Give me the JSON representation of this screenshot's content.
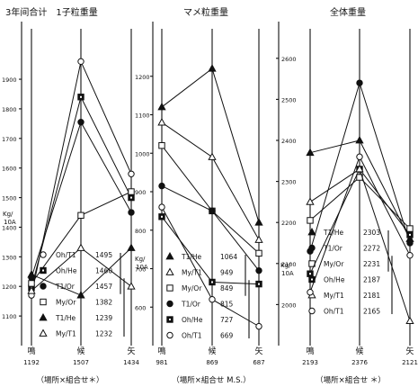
{
  "chart_data": [
    {
      "type": "line",
      "title": "3年间合计　1子粒重量",
      "yunit": "Kg/10A",
      "ylim": [
        1000,
        2040
      ],
      "yticks": [
        1100,
        1200,
        1300,
        1400,
        1500,
        1600,
        1700,
        1800,
        1900
      ],
      "x": [
        "鳴\n1192",
        "候\n1507",
        "矢\n1434"
      ],
      "xnote": "（場所×組合せ＊）",
      "series": [
        {
          "name": "Oh/T1",
          "marker": "circle-open",
          "values": [
            1170,
            1960,
            1580
          ],
          "legend_value": "1495"
        },
        {
          "name": "Oh/He",
          "marker": "square-dot",
          "values": [
            1195,
            1840,
            1500
          ],
          "legend_value": "1460"
        },
        {
          "name": "T1/Or",
          "marker": "circle-filled",
          "values": [
            1230,
            1755,
            1450
          ],
          "legend_value": "1457"
        },
        {
          "name": "My/Or",
          "marker": "square-open",
          "values": [
            1210,
            1440,
            1520
          ],
          "legend_value": "1382"
        },
        {
          "name": "T1/He",
          "marker": "triangle-filled",
          "values": [
            1240,
            1170,
            1330
          ],
          "legend_value": "1239"
        },
        {
          "name": "My/T1",
          "marker": "triangle-open",
          "values": [
            1185,
            1330,
            1200
          ],
          "legend_value": "1232"
        }
      ]
    },
    {
      "type": "line",
      "title": "マメ粒重量",
      "yunit": "Kg/10A",
      "ylim": [
        500,
        1300
      ],
      "yticks": [
        600,
        700,
        800,
        900,
        1000,
        1100,
        1200
      ],
      "x": [
        "鳴\n981",
        "候\n869",
        "矢\n687"
      ],
      "xnote": "（場所×組合せ M.S.）",
      "series": [
        {
          "name": "T1/He",
          "marker": "triangle-filled",
          "values": [
            1120,
            1220,
            820
          ],
          "legend_value": "1064"
        },
        {
          "name": "My/T1",
          "marker": "triangle-open",
          "values": [
            1080,
            990,
            775
          ],
          "legend_value": "949"
        },
        {
          "name": "My/Or",
          "marker": "square-open",
          "values": [
            1020,
            850,
            740
          ],
          "legend_value": "849"
        },
        {
          "name": "T1/Or",
          "marker": "circle-filled",
          "values": [
            915,
            850,
            695
          ],
          "legend_value": "815"
        },
        {
          "name": "Oh/He",
          "marker": "square-dot",
          "values": [
            835,
            665,
            660
          ],
          "legend_value": "727"
        },
        {
          "name": "Oh/T1",
          "marker": "circle-open",
          "values": [
            860,
            620,
            550
          ],
          "legend_value": "669"
        }
      ]
    },
    {
      "type": "line",
      "title": "全体重量",
      "yunit": "Kg/10A",
      "ylim": [
        1900,
        2650
      ],
      "yticks": [
        2000,
        2100,
        2200,
        2300,
        2400,
        2500,
        2600
      ],
      "x": [
        "鳴\n2193",
        "候\n2376",
        "矢\n2121"
      ],
      "xnote": "（場所×組合せ ＊）",
      "series": [
        {
          "name": "T1/He",
          "marker": "triangle-filled",
          "values": [
            2370,
            2400,
            2160
          ],
          "legend_value": "2303"
        },
        {
          "name": "T1/Or",
          "marker": "circle-filled",
          "values": [
            2130,
            2540,
            2150
          ],
          "legend_value": "2272"
        },
        {
          "name": "My/Or",
          "marker": "square-open",
          "values": [
            2205,
            2310,
            2185
          ],
          "legend_value": "2231"
        },
        {
          "name": "Oh/He",
          "marker": "square-dot",
          "values": [
            2075,
            2330,
            2170
          ],
          "legend_value": "2187"
        },
        {
          "name": "My/T1",
          "marker": "triangle-open",
          "values": [
            2250,
            2330,
            1960
          ],
          "legend_value": "2181"
        },
        {
          "name": "Oh/T1",
          "marker": "circle-open",
          "values": [
            2030,
            2360,
            2120
          ],
          "legend_value": "2165"
        }
      ]
    }
  ]
}
